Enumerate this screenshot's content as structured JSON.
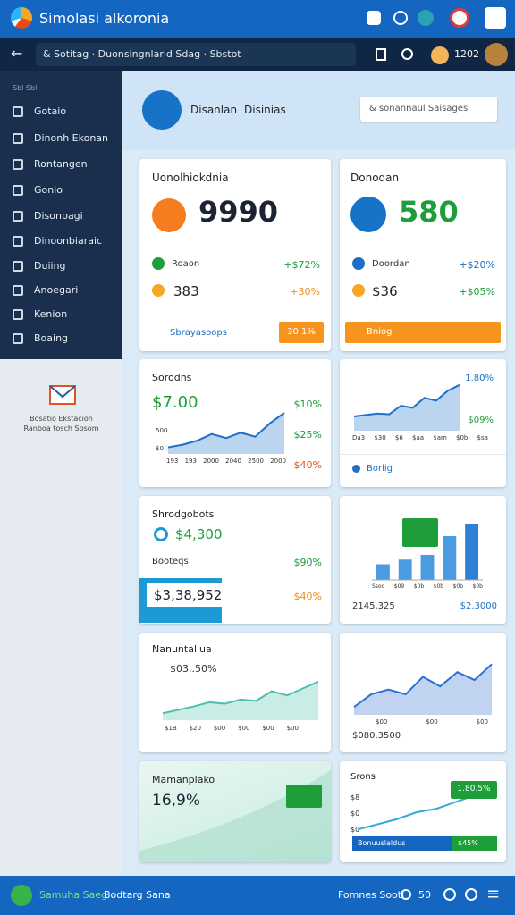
{
  "top_bar": {
    "title": "Simolasi alkoronia"
  },
  "nav_bar": {
    "search": "& Sotitag  ·  Duonsingnlarid  Sdag  ·  Sbstot",
    "user": "1202"
  },
  "sidebar": {
    "section": "Sbl   Sbl",
    "items": [
      "Gotaio",
      "Dinonh Ekonan",
      "Rontangen",
      "Gonio",
      "Disonbagi",
      "Dinoonbiaraic",
      "Duiing",
      "Anoegari",
      "Kenion",
      "Boaing"
    ],
    "note": [
      "Bosatio Ekstacion",
      "Ranboa tosch Sbsom"
    ]
  },
  "header": {
    "title": "Disanlan",
    "subtitle": "Disinias",
    "search": "& sonannaul Saisages"
  },
  "cards": [
    {
      "title": "Uonolhiokdnia",
      "big": "9990",
      "row1": [
        "Roaon",
        "+$72%"
      ],
      "row2": [
        "383",
        "+30%"
      ],
      "footer": "Sbrayasoops",
      "button": "30 1%"
    },
    {
      "title": "Donodan",
      "big": "580",
      "row1": [
        "Doordan",
        "+$20%"
      ],
      "row2": [
        "$36",
        "+$05%"
      ],
      "button": "Bniog"
    },
    {
      "title": "Sorodns",
      "big": "$7.00",
      "labels": [
        "$10%",
        "$25%",
        "$40%"
      ],
      "y_labels": [
        "500",
        "$0"
      ],
      "x_labels": [
        "193",
        "193",
        "2000",
        "2040",
        "2500",
        "2000"
      ]
    },
    {
      "labels": [
        "1.80%",
        "$09%"
      ],
      "x_labels": [
        "Da3",
        "$30",
        "$6",
        "$aa",
        "$am",
        "$0b",
        "$sa"
      ],
      "footer": "Borlig"
    },
    {
      "title": "Shrodgobots",
      "big": "$4,300",
      "row1": [
        "Booteqs",
        "$90%"
      ],
      "highlight": "$3,38,952",
      "value": "$40%"
    },
    {
      "x_labels": [
        "Ssoo",
        "$09",
        "$0b",
        "$0b",
        "$0b",
        "$0b"
      ],
      "left": "2145,325",
      "right": "$2.3000"
    },
    {
      "title": "Nanuntaliua",
      "sub": "$03..50%",
      "x_labels": [
        "$1B",
        "$20",
        "$00",
        "$00",
        "$00",
        "$00"
      ]
    },
    {
      "x_labels": [
        "$00",
        "$00",
        "$00"
      ],
      "value": "$080.3500"
    },
    {
      "title": "Mamanplako",
      "big": "16,9%"
    },
    {
      "title": "Srons",
      "y_labels": [
        "$8",
        "$0",
        "$0"
      ],
      "badge": "1.80.5%",
      "bar": "Bonuuslaldus",
      "bar_value": "$45%"
    }
  ],
  "charts": {
    "sales": {
      "values": [
        1,
        1.4,
        2,
        3,
        2.4,
        3.2,
        2.6,
        4.6,
        6.2
      ],
      "ylim": [
        0,
        7
      ]
    },
    "trend": {
      "values": [
        2,
        2.2,
        2.4,
        2.3,
        3.5,
        3.2,
        4.6,
        4.2,
        5.6,
        6.4
      ],
      "ylim": [
        0,
        7
      ]
    },
    "bars": {
      "values": [
        2,
        2.6,
        3.2,
        5.6,
        7.2
      ],
      "ylim": [
        0,
        8
      ]
    },
    "area_left": {
      "values": [
        1,
        1.5,
        2,
        2.6,
        2.4,
        3,
        2.8,
        4.2,
        3.6,
        4.6,
        5.6
      ],
      "ylim": [
        0,
        7
      ]
    },
    "area_right": {
      "values": [
        1,
        2.6,
        3.2,
        2.6,
        4.8,
        3.6,
        5.4,
        4.4,
        6.4
      ],
      "ylim": [
        0,
        7
      ]
    },
    "small_line": {
      "values": [
        1,
        1.6,
        2.2,
        3,
        3.4,
        4.2,
        5
      ],
      "ylim": [
        0,
        6
      ]
    }
  },
  "bottom_bar": {
    "left": "Samuha Saeg",
    "left2": "Bodtarg Sana",
    "right": "Fomnes Sootl",
    "count": "50"
  }
}
